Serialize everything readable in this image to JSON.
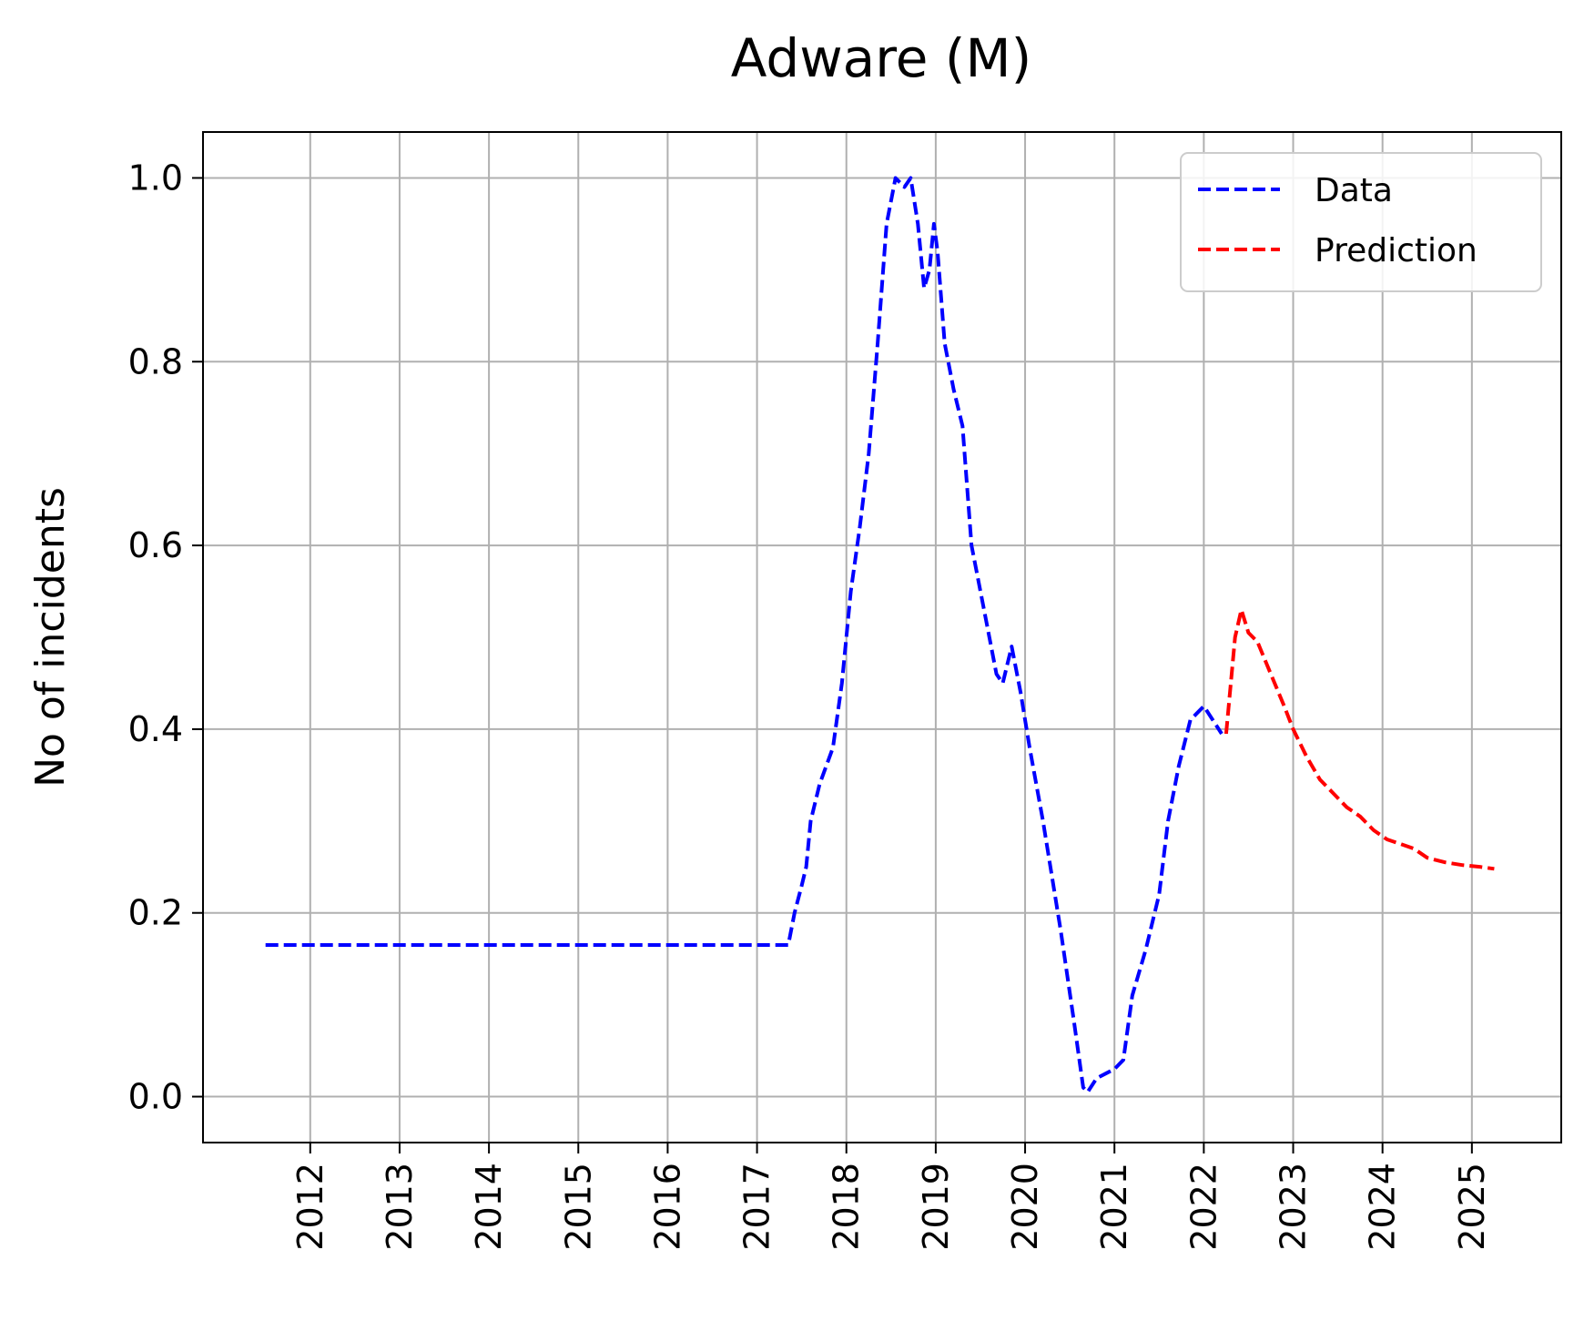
{
  "chart_data": {
    "type": "line",
    "title": "Adware (M)",
    "xlabel": "",
    "ylabel": "No of incidents",
    "x_tick_labels": [
      "2012",
      "2013",
      "2014",
      "2015",
      "2016",
      "2017",
      "2018",
      "2019",
      "2020",
      "2021",
      "2022",
      "2023",
      "2024",
      "2025"
    ],
    "x_ticks": [
      2012,
      2013,
      2014,
      2015,
      2016,
      2017,
      2018,
      2019,
      2020,
      2021,
      2022,
      2023,
      2024,
      2025
    ],
    "y_ticks": [
      0.0,
      0.2,
      0.4,
      0.6,
      0.8,
      1.0
    ],
    "y_tick_labels": [
      "0.0",
      "0.2",
      "0.4",
      "0.6",
      "0.8",
      "1.0"
    ],
    "xlim": [
      2010.8,
      2026.0
    ],
    "ylim": [
      -0.05,
      1.05
    ],
    "grid": true,
    "legend_position": "top-right",
    "series": [
      {
        "name": "Data",
        "color": "#0000ff",
        "style": "dashed",
        "points": [
          [
            2011.5,
            0.165
          ],
          [
            2017.35,
            0.165
          ],
          [
            2017.42,
            0.2
          ],
          [
            2017.5,
            0.23
          ],
          [
            2017.55,
            0.25
          ],
          [
            2017.6,
            0.3
          ],
          [
            2017.7,
            0.34
          ],
          [
            2017.85,
            0.38
          ],
          [
            2017.95,
            0.45
          ],
          [
            2018.05,
            0.55
          ],
          [
            2018.15,
            0.62
          ],
          [
            2018.25,
            0.7
          ],
          [
            2018.35,
            0.82
          ],
          [
            2018.45,
            0.95
          ],
          [
            2018.55,
            1.0
          ],
          [
            2018.65,
            0.99
          ],
          [
            2018.72,
            1.0
          ],
          [
            2018.8,
            0.95
          ],
          [
            2018.87,
            0.88
          ],
          [
            2018.93,
            0.9
          ],
          [
            2018.98,
            0.95
          ],
          [
            2019.02,
            0.92
          ],
          [
            2019.1,
            0.82
          ],
          [
            2019.2,
            0.77
          ],
          [
            2019.3,
            0.73
          ],
          [
            2019.4,
            0.6
          ],
          [
            2019.5,
            0.55
          ],
          [
            2019.6,
            0.5
          ],
          [
            2019.68,
            0.46
          ],
          [
            2019.75,
            0.45
          ],
          [
            2019.85,
            0.49
          ],
          [
            2019.95,
            0.44
          ],
          [
            2020.05,
            0.38
          ],
          [
            2020.2,
            0.3
          ],
          [
            2020.4,
            0.18
          ],
          [
            2020.55,
            0.08
          ],
          [
            2020.65,
            0.01
          ],
          [
            2020.7,
            0.005
          ],
          [
            2020.8,
            0.02
          ],
          [
            2020.9,
            0.025
          ],
          [
            2021.0,
            0.03
          ],
          [
            2021.1,
            0.04
          ],
          [
            2021.2,
            0.11
          ],
          [
            2021.35,
            0.16
          ],
          [
            2021.5,
            0.22
          ],
          [
            2021.6,
            0.3
          ],
          [
            2021.72,
            0.36
          ],
          [
            2021.85,
            0.41
          ],
          [
            2022.0,
            0.425
          ],
          [
            2022.1,
            0.41
          ],
          [
            2022.2,
            0.395
          ]
        ]
      },
      {
        "name": "Prediction",
        "color": "#ff0000",
        "style": "dashed",
        "points": [
          [
            2022.25,
            0.395
          ],
          [
            2022.35,
            0.5
          ],
          [
            2022.42,
            0.53
          ],
          [
            2022.5,
            0.505
          ],
          [
            2022.6,
            0.495
          ],
          [
            2022.75,
            0.46
          ],
          [
            2022.9,
            0.425
          ],
          [
            2023.0,
            0.4
          ],
          [
            2023.15,
            0.37
          ],
          [
            2023.3,
            0.345
          ],
          [
            2023.45,
            0.33
          ],
          [
            2023.6,
            0.315
          ],
          [
            2023.75,
            0.305
          ],
          [
            2023.9,
            0.29
          ],
          [
            2024.05,
            0.28
          ],
          [
            2024.2,
            0.275
          ],
          [
            2024.35,
            0.27
          ],
          [
            2024.5,
            0.26
          ],
          [
            2024.7,
            0.255
          ],
          [
            2024.9,
            0.252
          ],
          [
            2025.1,
            0.25
          ],
          [
            2025.25,
            0.248
          ]
        ]
      }
    ]
  }
}
